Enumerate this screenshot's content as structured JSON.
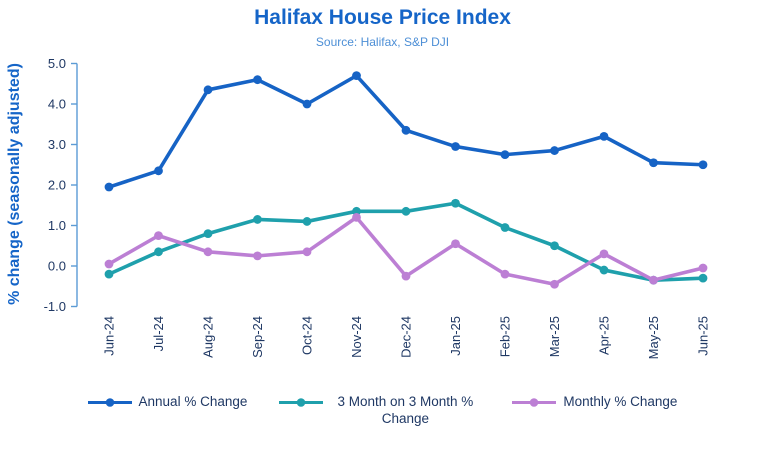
{
  "header": {
    "title": "Halifax House Price Index",
    "subtitle": "Source: Halifax,  S&P DJI"
  },
  "colors": {
    "title_blue": "#1565C8",
    "subtitle_blue": "#4D8FD6",
    "axis_line": "#5B9BD5",
    "tick_label": "#1F3864",
    "series_annual": "#1663C5",
    "series_three_month": "#1FA0AC",
    "series_monthly": "#BC7FD4"
  },
  "chart_data": {
    "type": "line",
    "title": "Halifax House Price Index",
    "subtitle": "Source: Halifax,  S&P DJI",
    "xlabel": "",
    "ylabel": "%  change (seasonally adjusted)",
    "ylim": [
      -1.0,
      5.0
    ],
    "yticks": [
      5.0,
      4.0,
      3.0,
      2.0,
      1.0,
      0.0,
      -1.0
    ],
    "grid": false,
    "legend_position": "bottom",
    "markers": true,
    "categories": [
      "Jun-24",
      "Jul-24",
      "Aug-24",
      "Sep-24",
      "Oct-24",
      "Nov-24",
      "Dec-24",
      "Jan-25",
      "Feb-25",
      "Mar-25",
      "Apr-25",
      "May-25",
      "Jun-25"
    ],
    "series": [
      {
        "name": "Annual % Change",
        "color": "#1663C5",
        "values": [
          1.95,
          2.35,
          4.35,
          4.6,
          4.0,
          4.7,
          3.35,
          2.95,
          2.75,
          2.85,
          3.2,
          2.55,
          2.5
        ]
      },
      {
        "name": "3 Month on 3 Month % Change",
        "color": "#1FA0AC",
        "values": [
          -0.2,
          0.35,
          0.8,
          1.15,
          1.1,
          1.35,
          1.35,
          1.55,
          0.95,
          0.5,
          -0.1,
          -0.35,
          -0.3
        ]
      },
      {
        "name": "Monthly % Change",
        "color": "#BC7FD4",
        "values": [
          0.05,
          0.75,
          0.35,
          0.25,
          0.35,
          1.2,
          -0.25,
          0.55,
          -0.2,
          -0.45,
          0.3,
          -0.35,
          -0.05
        ]
      }
    ]
  }
}
